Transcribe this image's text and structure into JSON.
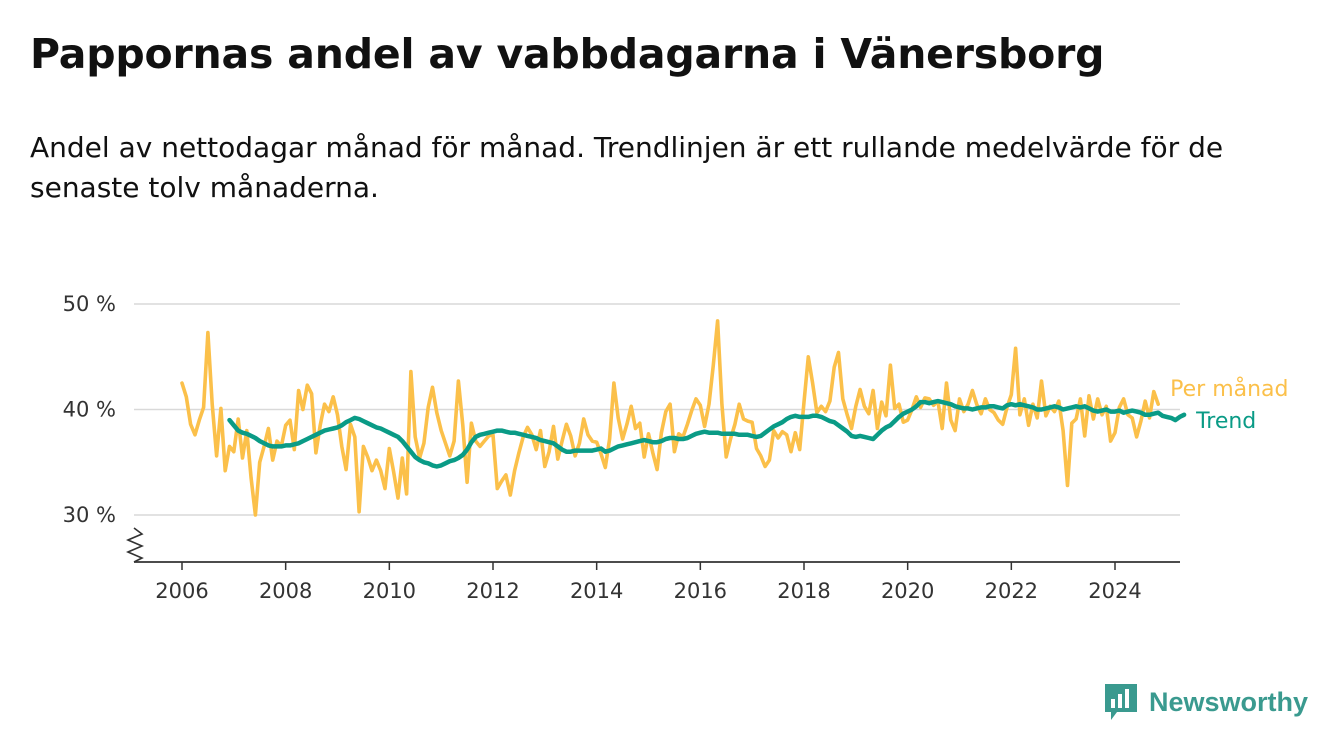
{
  "header": {
    "title": "Pappornas andel av vabbdagarna i Vänersborg",
    "subtitle": "Andel av nettodagar månad för månad. Trendlinjen är ett rullande medelvärde för de senaste tolv månaderna."
  },
  "brand": {
    "name": "Newsworthy",
    "logo_icon": "newsworthy-logo-icon"
  },
  "colors": {
    "monthly": "#fbc04a",
    "trend": "#0a9b86",
    "grid": "#d9d9d9",
    "axis": "#333333"
  },
  "chart_data": {
    "type": "line",
    "x_unit": "year",
    "y_unit": "%",
    "ylim": [
      25.5,
      50
    ],
    "y_ticks": [
      30,
      40,
      50
    ],
    "y_tick_labels": [
      "30 %",
      "40 %",
      "50 %"
    ],
    "x_ticks": [
      2006,
      2008,
      2010,
      2012,
      2014,
      2016,
      2018,
      2020,
      2022,
      2024
    ],
    "x_tick_labels": [
      "2006",
      "2008",
      "2010",
      "2012",
      "2014",
      "2016",
      "2018",
      "2020",
      "2022",
      "2024"
    ],
    "xlim": [
      2005.1,
      2025.2
    ],
    "grid": true,
    "axis_break": true,
    "series": [
      {
        "name": "Per månad",
        "key": "monthly",
        "x_start": 2006.0,
        "x_step": 0.08333,
        "values": [
          42.5,
          41.2,
          38.6,
          37.6,
          39.0,
          40.2,
          47.3,
          40.5,
          35.6,
          40.1,
          34.2,
          36.5,
          36.0,
          39.1,
          35.4,
          38.0,
          33.5,
          30.0,
          35.0,
          36.5,
          38.2,
          35.2,
          37.0,
          36.5,
          38.5,
          39.0,
          36.2,
          41.8,
          40.0,
          42.3,
          41.5,
          35.9,
          38.5,
          40.5,
          39.8,
          41.2,
          39.5,
          36.5,
          34.3,
          38.6,
          37.4,
          30.3,
          36.5,
          35.5,
          34.2,
          35.2,
          34.2,
          32.5,
          36.3,
          34.1,
          31.6,
          35.4,
          32.0,
          43.6,
          37.4,
          35.4,
          36.8,
          40.2,
          42.1,
          39.7,
          38.0,
          36.8,
          35.6,
          37.0,
          42.7,
          38.5,
          33.1,
          38.7,
          37.0,
          36.5,
          37.0,
          37.5,
          37.6,
          32.5,
          33.2,
          33.8,
          31.9,
          34.2,
          35.9,
          37.4,
          38.3,
          37.6,
          36.2,
          38.0,
          34.6,
          36.0,
          38.4,
          35.3,
          37.0,
          38.6,
          37.5,
          35.6,
          36.8,
          39.1,
          37.6,
          37.0,
          36.9,
          35.8,
          34.5,
          37.2,
          42.5,
          39.2,
          37.2,
          38.6,
          40.3,
          38.2,
          38.7,
          35.5,
          37.7,
          35.9,
          34.3,
          37.8,
          39.8,
          40.5,
          36.0,
          37.7,
          37.4,
          38.6,
          39.9,
          41.0,
          40.4,
          38.4,
          40.5,
          44.2,
          48.4,
          40.5,
          35.5,
          37.2,
          38.6,
          40.5,
          39.1,
          38.9,
          38.8,
          36.3,
          35.6,
          34.6,
          35.2,
          38.0,
          37.3,
          37.9,
          37.6,
          36.0,
          37.8,
          36.2,
          40.7,
          45.0,
          42.5,
          39.7,
          40.3,
          39.8,
          40.8,
          44.0,
          45.4,
          41.0,
          39.5,
          38.2,
          40.3,
          41.9,
          40.3,
          39.6,
          41.8,
          38.2,
          40.7,
          39.4,
          44.2,
          40.1,
          40.5,
          38.8,
          39.0,
          40.0,
          41.2,
          40.2,
          41.1,
          41.0,
          40.4,
          40.8,
          38.2,
          42.5,
          39.0,
          38.0,
          41.0,
          39.8,
          40.5,
          41.8,
          40.5,
          39.6,
          41.0,
          40.0,
          39.7,
          39.0,
          38.6,
          40.2,
          41.4,
          45.8,
          39.5,
          41.0,
          38.5,
          40.5,
          39.2,
          42.7,
          39.4,
          40.3,
          39.8,
          40.8,
          38.0,
          32.8,
          38.7,
          39.1,
          41.0,
          37.5,
          41.3,
          39.1,
          41.0,
          39.5,
          40.3,
          37.0,
          37.8,
          40.2,
          41.0,
          39.5,
          39.2,
          37.4,
          38.9,
          40.8,
          39.2,
          41.7,
          40.5
        ]
      },
      {
        "name": "Trend",
        "key": "trend",
        "x_start": 2006.9167,
        "x_step": 0.08333,
        "values": [
          39.0,
          38.5,
          38.0,
          37.8,
          37.7,
          37.5,
          37.3,
          37.0,
          36.8,
          36.6,
          36.5,
          36.5,
          36.5,
          36.6,
          36.6,
          36.7,
          36.8,
          37.0,
          37.2,
          37.4,
          37.6,
          37.8,
          38.0,
          38.1,
          38.2,
          38.3,
          38.5,
          38.8,
          39.0,
          39.2,
          39.1,
          38.9,
          38.7,
          38.5,
          38.3,
          38.2,
          38.0,
          37.8,
          37.6,
          37.4,
          37.0,
          36.5,
          36.0,
          35.5,
          35.2,
          35.0,
          34.9,
          34.7,
          34.6,
          34.7,
          34.9,
          35.1,
          35.2,
          35.4,
          35.7,
          36.2,
          36.9,
          37.4,
          37.6,
          37.7,
          37.8,
          37.9,
          38.0,
          38.0,
          37.9,
          37.8,
          37.8,
          37.7,
          37.6,
          37.5,
          37.4,
          37.3,
          37.1,
          37.0,
          36.9,
          36.8,
          36.5,
          36.2,
          36.0,
          36.0,
          36.1,
          36.1,
          36.1,
          36.1,
          36.1,
          36.2,
          36.3,
          36.0,
          36.1,
          36.3,
          36.5,
          36.6,
          36.7,
          36.8,
          36.9,
          37.0,
          37.1,
          37.0,
          36.9,
          36.9,
          37.0,
          37.2,
          37.3,
          37.3,
          37.2,
          37.2,
          37.3,
          37.5,
          37.7,
          37.8,
          37.9,
          37.8,
          37.8,
          37.8,
          37.7,
          37.7,
          37.7,
          37.7,
          37.6,
          37.6,
          37.6,
          37.5,
          37.4,
          37.5,
          37.8,
          38.1,
          38.4,
          38.6,
          38.8,
          39.1,
          39.3,
          39.4,
          39.3,
          39.3,
          39.3,
          39.4,
          39.4,
          39.3,
          39.1,
          38.9,
          38.8,
          38.5,
          38.2,
          37.9,
          37.5,
          37.4,
          37.5,
          37.4,
          37.3,
          37.2,
          37.6,
          38.0,
          38.3,
          38.5,
          38.9,
          39.3,
          39.6,
          39.8,
          40.0,
          40.3,
          40.7,
          40.7,
          40.6,
          40.7,
          40.8,
          40.7,
          40.6,
          40.5,
          40.3,
          40.2,
          40.1,
          40.1,
          40.0,
          40.1,
          40.2,
          40.2,
          40.3,
          40.3,
          40.2,
          40.1,
          40.4,
          40.5,
          40.4,
          40.5,
          40.4,
          40.3,
          40.2,
          40.0,
          40.0,
          40.1,
          40.2,
          40.3,
          40.2,
          40.0,
          40.1,
          40.2,
          40.3,
          40.2,
          40.3,
          40.1,
          39.9,
          39.8,
          39.9,
          40.0,
          39.8,
          39.8,
          39.9,
          39.7,
          39.8,
          39.9,
          39.8,
          39.7,
          39.5,
          39.5,
          39.6,
          39.7,
          39.4,
          39.3,
          39.2,
          39.0,
          39.3,
          39.5
        ]
      }
    ]
  }
}
